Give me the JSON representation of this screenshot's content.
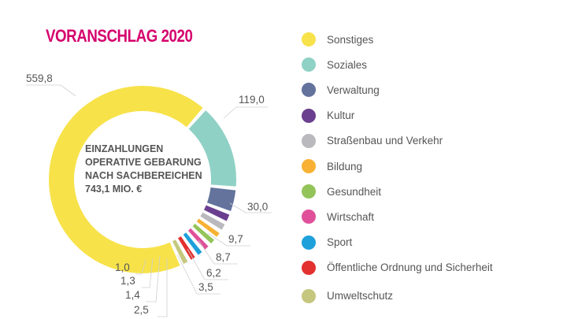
{
  "chart_data": {
    "type": "pie",
    "variant": "donut",
    "title": "VORANSCHLAG 2020",
    "center_text": [
      "EINZAHLUNGEN",
      "OPERATIVE GEBARUNG",
      "NACH SACHBEREICHEN",
      "743,1 MIO. €"
    ],
    "legend_position": "right",
    "categories": [
      "Sonstiges",
      "Soziales",
      "Verwaltung",
      "Kultur",
      "Straßenbau und Verkehr",
      "Bildung",
      "Gesundheit",
      "Wirtschaft",
      "Sport",
      "Öffentliche Ordnung und Sicherheit",
      "Umweltschutz"
    ],
    "values": [
      559.8,
      119.0,
      30.0,
      9.7,
      8.7,
      6.2,
      3.5,
      2.5,
      1.4,
      1.3,
      1.0
    ],
    "value_labels": [
      "559,8",
      "119,0",
      "30,0",
      "9,7",
      "8,7",
      "6,2",
      "3,5",
      "2,5",
      "1,4",
      "1,3",
      "1,0"
    ],
    "colors": [
      "#f7e24a",
      "#8fd1c5",
      "#63739c",
      "#6b3f8f",
      "#b9b9be",
      "#f8b133",
      "#93c45a",
      "#e0509a",
      "#1ea0db",
      "#e2312f",
      "#c5c77e"
    ]
  },
  "title_color": "#d5006d"
}
